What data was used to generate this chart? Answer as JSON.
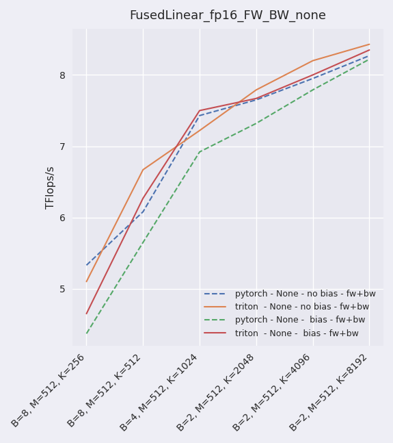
{
  "title": "FusedLinear_fp16_FW_BW_none",
  "ylabel": "TFlops/s",
  "x_labels": [
    "B=8, M=512, K=256",
    "B=8, M=512, K=512",
    "B=4, M=512, K=1024",
    "B=2, M=512, K=2048",
    "B=2, M=512, K=4096",
    "B=2, M=512, K=8192"
  ],
  "x_positions": [
    0,
    1,
    2,
    3,
    4,
    5
  ],
  "series": [
    {
      "label": " pytorch - None - no bias - fw+bw",
      "color": "#4c72b0",
      "linestyle": "--",
      "linewidth": 1.5,
      "values": [
        5.33,
        6.08,
        7.43,
        7.65,
        7.95,
        8.27
      ]
    },
    {
      "label": " triton  - None - no bias - fw+bw",
      "color": "#dd8452",
      "linestyle": "-",
      "linewidth": 1.5,
      "values": [
        5.1,
        6.67,
        7.22,
        7.79,
        8.2,
        8.43
      ]
    },
    {
      "label": " pytorch - None -  bias - fw+bw",
      "color": "#55a868",
      "linestyle": "--",
      "linewidth": 1.5,
      "values": [
        4.37,
        5.65,
        6.92,
        7.32,
        7.79,
        8.22
      ]
    },
    {
      "label": " triton  - None -  bias - fw+bw",
      "color": "#c44e52",
      "linestyle": "-",
      "linewidth": 1.5,
      "values": [
        4.65,
        6.27,
        7.5,
        7.67,
        8.0,
        8.35
      ]
    }
  ],
  "ylim": [
    4.2,
    8.65
  ],
  "yticks": [
    5,
    6,
    7,
    8
  ],
  "axes_facecolor": "#e8e8f0",
  "figure_facecolor": "#eeeef5",
  "grid_color": "#ffffff",
  "legend_loc": "lower right",
  "title_fontsize": 13,
  "label_fontsize": 11,
  "tick_fontsize": 10
}
